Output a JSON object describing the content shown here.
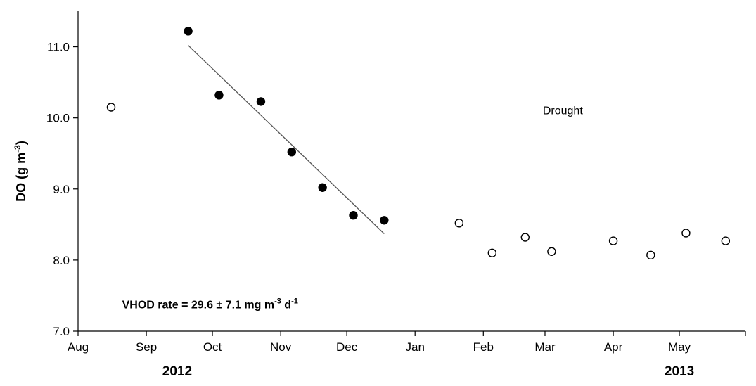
{
  "chart_data": {
    "type": "scatter",
    "title": "",
    "ylabel": {
      "main": "DO (g m",
      "sup": "-3",
      "tail": ")"
    },
    "ylim": [
      7.0,
      11.5
    ],
    "yticks": [
      7.0,
      8.0,
      9.0,
      10.0,
      11.0
    ],
    "xlim": [
      "2012-08-01",
      "2013-05-31"
    ],
    "xticks": [
      {
        "date": "2012-08-01",
        "label": "Aug"
      },
      {
        "date": "2012-09-01",
        "label": "Sep"
      },
      {
        "date": "2012-10-01",
        "label": "Oct"
      },
      {
        "date": "2012-11-01",
        "label": "Nov"
      },
      {
        "date": "2012-12-01",
        "label": "Dec"
      },
      {
        "date": "2013-01-01",
        "label": "Jan"
      },
      {
        "date": "2013-02-01",
        "label": "Feb"
      },
      {
        "date": "2013-03-01",
        "label": "Mar"
      },
      {
        "date": "2013-04-01",
        "label": "Apr"
      },
      {
        "date": "2013-05-01",
        "label": "May"
      }
    ],
    "year_labels": [
      {
        "label": "2012",
        "date": "2012-09-15"
      },
      {
        "label": "2013",
        "date": "2013-05-01"
      }
    ],
    "grid": false,
    "series": [
      {
        "style": "filled",
        "points": [
          {
            "x": "2012-09-20",
            "y": 11.22
          },
          {
            "x": "2012-10-04",
            "y": 10.32
          },
          {
            "x": "2012-10-23",
            "y": 10.23
          },
          {
            "x": "2012-11-06",
            "y": 9.52
          },
          {
            "x": "2012-11-20",
            "y": 9.02
          },
          {
            "x": "2012-12-04",
            "y": 8.63
          },
          {
            "x": "2012-12-18",
            "y": 8.56
          }
        ]
      },
      {
        "style": "open",
        "points": [
          {
            "x": "2012-08-16",
            "y": 10.15
          },
          {
            "x": "2013-01-21",
            "y": 8.52
          },
          {
            "x": "2013-02-05",
            "y": 8.1
          },
          {
            "x": "2013-02-20",
            "y": 8.32
          },
          {
            "x": "2013-03-04",
            "y": 8.12
          },
          {
            "x": "2013-04-01",
            "y": 8.27
          },
          {
            "x": "2013-04-18",
            "y": 8.07
          },
          {
            "x": "2013-05-04",
            "y": 8.38
          },
          {
            "x": "2013-05-22",
            "y": 8.27
          }
        ]
      }
    ],
    "trendline": {
      "start": {
        "x": "2012-09-20",
        "y": 11.02
      },
      "end": {
        "x": "2012-12-18",
        "y": 8.37
      }
    },
    "annotations": {
      "drought": {
        "text": "Drought",
        "x": "2013-02-28",
        "y": 10.05
      },
      "vhod": {
        "x": "2012-08-21",
        "y": 7.32,
        "parts": [
          {
            "t": "VHOD rate = 29.6 ± 7.1 mg m",
            "sup": false
          },
          {
            "t": "-3",
            "sup": true
          },
          {
            "t": " d",
            "sup": false
          },
          {
            "t": "-1",
            "sup": true
          }
        ]
      }
    },
    "ytick_decimals": 1
  }
}
